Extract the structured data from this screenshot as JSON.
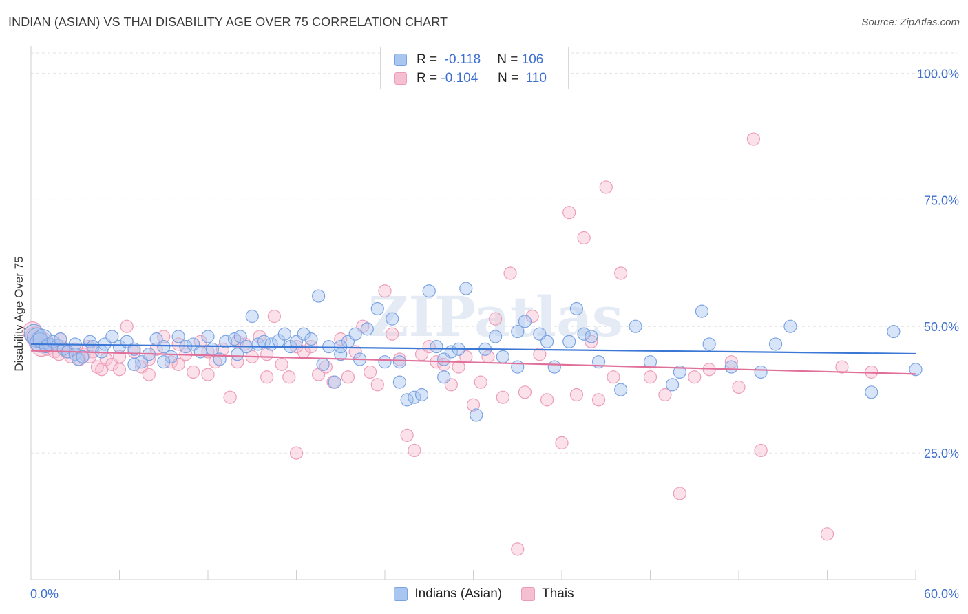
{
  "title": "INDIAN (ASIAN) VS THAI DISABILITY AGE OVER 75 CORRELATION CHART",
  "source": "Source: ZipAtlas.com",
  "legend": {
    "r_label": "R =",
    "n_label": "N =",
    "series": [
      {
        "name": "Indians (Asian)",
        "r": "-0.118",
        "n": "106"
      },
      {
        "name": "Thais",
        "r": "-0.104",
        "n": "110"
      }
    ]
  },
  "colors": {
    "blue_fill": "#a9c6f0",
    "blue_stroke": "#7ba3e3",
    "blue_line": "#3b78d6",
    "pink_fill": "#f6bfd1",
    "pink_stroke": "#ee9db9",
    "pink_line": "#e0709a",
    "tick_label": "#3d6fd1"
  },
  "chart_data": {
    "type": "scatter",
    "title": "INDIAN (ASIAN) VS THAI DISABILITY AGE OVER 75 CORRELATION CHART",
    "xlabel": "",
    "ylabel": "Disability Age Over 75",
    "xlim": [
      0,
      60
    ],
    "ylim": [
      0,
      104
    ],
    "x_tick_labels": [
      "0.0%",
      "60.0%"
    ],
    "y_ticks": [
      25,
      50,
      75,
      100
    ],
    "y_tick_labels": [
      "25.0%",
      "50.0%",
      "75.0%",
      "100.0%"
    ],
    "watermark": "ZIPatlas",
    "series": [
      {
        "name": "Indians (Asian)",
        "trend": {
          "x": [
            0,
            60
          ],
          "y": [
            46.5,
            44.6
          ]
        },
        "points": [
          [
            0.2,
            48.5
          ],
          [
            0.4,
            47.8
          ],
          [
            0.6,
            46.8
          ],
          [
            0.8,
            47.5
          ],
          [
            1.0,
            46.0
          ],
          [
            1.2,
            46.5
          ],
          [
            1.5,
            47.0
          ],
          [
            1.8,
            46.2
          ],
          [
            2.0,
            47.5
          ],
          [
            2.2,
            45.5
          ],
          [
            2.5,
            45.0
          ],
          [
            3.0,
            44.5
          ],
          [
            3.2,
            43.5
          ],
          [
            3.5,
            44.0
          ],
          [
            4.0,
            47.0
          ],
          [
            4.2,
            46.0
          ],
          [
            4.8,
            45.0
          ],
          [
            5.0,
            46.5
          ],
          [
            5.5,
            48.0
          ],
          [
            6.0,
            46.0
          ],
          [
            6.5,
            47.0
          ],
          [
            7.0,
            45.5
          ],
          [
            7.5,
            43.0
          ],
          [
            8.0,
            44.5
          ],
          [
            8.5,
            47.5
          ],
          [
            9.0,
            46.0
          ],
          [
            9.5,
            44.0
          ],
          [
            10.0,
            48.0
          ],
          [
            10.5,
            46.0
          ],
          [
            11.0,
            46.5
          ],
          [
            11.5,
            45.0
          ],
          [
            12.0,
            48.0
          ],
          [
            12.3,
            45.5
          ],
          [
            12.8,
            43.5
          ],
          [
            13.2,
            47.0
          ],
          [
            13.8,
            47.5
          ],
          [
            14.2,
            48.0
          ],
          [
            14.6,
            46.0
          ],
          [
            15.0,
            52.0
          ],
          [
            15.4,
            46.5
          ],
          [
            15.8,
            47.0
          ],
          [
            16.3,
            46.5
          ],
          [
            16.8,
            47.2
          ],
          [
            17.2,
            48.5
          ],
          [
            17.6,
            46.0
          ],
          [
            18.0,
            47.0
          ],
          [
            18.5,
            48.5
          ],
          [
            19.0,
            47.5
          ],
          [
            19.5,
            56.0
          ],
          [
            19.8,
            42.5
          ],
          [
            20.2,
            46.0
          ],
          [
            20.6,
            39.0
          ],
          [
            21.0,
            44.5
          ],
          [
            21.5,
            47.0
          ],
          [
            22.0,
            48.5
          ],
          [
            22.3,
            43.5
          ],
          [
            22.8,
            49.5
          ],
          [
            23.5,
            53.5
          ],
          [
            24.0,
            43.0
          ],
          [
            24.5,
            51.5
          ],
          [
            25.0,
            39.0
          ],
          [
            25.5,
            35.5
          ],
          [
            26.0,
            36.0
          ],
          [
            26.5,
            36.5
          ],
          [
            27.0,
            57.0
          ],
          [
            27.5,
            46.0
          ],
          [
            28.0,
            40.0
          ],
          [
            28.5,
            45.0
          ],
          [
            29.0,
            45.5
          ],
          [
            29.5,
            57.5
          ],
          [
            30.2,
            32.5
          ],
          [
            30.8,
            45.5
          ],
          [
            31.5,
            48.0
          ],
          [
            32.0,
            44.0
          ],
          [
            33.0,
            49.0
          ],
          [
            33.5,
            51.0
          ],
          [
            34.5,
            48.5
          ],
          [
            35.0,
            47.0
          ],
          [
            35.5,
            42.0
          ],
          [
            36.5,
            47.0
          ],
          [
            37.0,
            53.5
          ],
          [
            37.5,
            48.5
          ],
          [
            38.0,
            48.0
          ],
          [
            38.5,
            43.0
          ],
          [
            40.0,
            37.5
          ],
          [
            41.0,
            50.0
          ],
          [
            42.0,
            43.0
          ],
          [
            43.5,
            38.5
          ],
          [
            44.0,
            41.0
          ],
          [
            45.5,
            53.0
          ],
          [
            46.0,
            46.5
          ],
          [
            47.5,
            42.0
          ],
          [
            49.5,
            41.0
          ],
          [
            50.5,
            46.5
          ],
          [
            51.5,
            50.0
          ],
          [
            57.0,
            37.0
          ],
          [
            58.5,
            49.0
          ],
          [
            60.0,
            41.5
          ],
          [
            3.0,
            46.5
          ],
          [
            7.0,
            42.5
          ],
          [
            9.0,
            43.0
          ],
          [
            14.0,
            44.5
          ],
          [
            21.0,
            46.0
          ],
          [
            25.0,
            43.0
          ],
          [
            28.0,
            43.5
          ],
          [
            33.0,
            42.0
          ]
        ]
      },
      {
        "name": "Thais",
        "trend": {
          "x": [
            0,
            60
          ],
          "y": [
            45.2,
            40.6
          ]
        },
        "points": [
          [
            0.1,
            49.0
          ],
          [
            0.3,
            48.0
          ],
          [
            0.5,
            47.0
          ],
          [
            0.7,
            46.0
          ],
          [
            0.9,
            47.5
          ],
          [
            1.1,
            45.5
          ],
          [
            1.3,
            46.5
          ],
          [
            1.6,
            45.0
          ],
          [
            1.9,
            44.5
          ],
          [
            2.1,
            46.0
          ],
          [
            2.4,
            45.0
          ],
          [
            2.7,
            44.0
          ],
          [
            3.0,
            45.5
          ],
          [
            3.3,
            43.5
          ],
          [
            3.6,
            44.5
          ],
          [
            3.9,
            46.0
          ],
          [
            4.2,
            45.0
          ],
          [
            4.5,
            42.0
          ],
          [
            4.8,
            41.5
          ],
          [
            5.1,
            43.5
          ],
          [
            5.5,
            42.5
          ],
          [
            6.0,
            44.0
          ],
          [
            6.5,
            50.0
          ],
          [
            7.0,
            45.0
          ],
          [
            7.5,
            42.0
          ],
          [
            8.0,
            43.5
          ],
          [
            8.5,
            45.5
          ],
          [
            9.0,
            48.0
          ],
          [
            9.5,
            43.0
          ],
          [
            10.0,
            42.5
          ],
          [
            10.5,
            44.5
          ],
          [
            11.0,
            41.0
          ],
          [
            11.5,
            47.0
          ],
          [
            12.0,
            45.0
          ],
          [
            12.5,
            43.0
          ],
          [
            13.0,
            45.5
          ],
          [
            13.5,
            36.0
          ],
          [
            14.0,
            43.0
          ],
          [
            14.5,
            46.5
          ],
          [
            15.0,
            44.0
          ],
          [
            15.5,
            48.0
          ],
          [
            16.0,
            44.5
          ],
          [
            16.5,
            52.0
          ],
          [
            17.0,
            42.5
          ],
          [
            17.5,
            40.0
          ],
          [
            18.0,
            25.0
          ],
          [
            18.5,
            45.0
          ],
          [
            19.0,
            46.0
          ],
          [
            19.5,
            40.5
          ],
          [
            20.0,
            42.0
          ],
          [
            20.5,
            39.0
          ],
          [
            21.0,
            47.5
          ],
          [
            21.5,
            40.0
          ],
          [
            22.0,
            45.0
          ],
          [
            22.5,
            50.0
          ],
          [
            23.0,
            41.0
          ],
          [
            23.5,
            38.5
          ],
          [
            24.0,
            57.0
          ],
          [
            24.5,
            48.5
          ],
          [
            25.0,
            43.5
          ],
          [
            25.5,
            28.5
          ],
          [
            26.0,
            25.5
          ],
          [
            26.5,
            44.5
          ],
          [
            27.0,
            46.0
          ],
          [
            27.5,
            43.0
          ],
          [
            28.0,
            42.5
          ],
          [
            28.5,
            38.5
          ],
          [
            29.0,
            42.0
          ],
          [
            29.5,
            44.0
          ],
          [
            30.0,
            34.5
          ],
          [
            30.5,
            39.0
          ],
          [
            31.0,
            44.0
          ],
          [
            31.5,
            51.5
          ],
          [
            32.0,
            36.0
          ],
          [
            32.5,
            60.5
          ],
          [
            33.0,
            6.0
          ],
          [
            33.5,
            37.0
          ],
          [
            34.0,
            52.0
          ],
          [
            34.5,
            44.5
          ],
          [
            35.0,
            35.5
          ],
          [
            36.0,
            27.0
          ],
          [
            36.5,
            72.5
          ],
          [
            37.0,
            36.5
          ],
          [
            37.5,
            67.5
          ],
          [
            38.0,
            47.0
          ],
          [
            38.5,
            35.5
          ],
          [
            39.0,
            77.5
          ],
          [
            39.5,
            40.0
          ],
          [
            40.0,
            60.5
          ],
          [
            42.0,
            40.0
          ],
          [
            43.0,
            36.5
          ],
          [
            44.0,
            17.0
          ],
          [
            45.0,
            40.0
          ],
          [
            46.0,
            41.5
          ],
          [
            47.5,
            43.0
          ],
          [
            48.0,
            38.0
          ],
          [
            49.0,
            87.0
          ],
          [
            49.5,
            25.5
          ],
          [
            54.0,
            9.0
          ],
          [
            55.0,
            42.0
          ],
          [
            57.0,
            41.0
          ],
          [
            2.0,
            47.5
          ],
          [
            4.0,
            44.0
          ],
          [
            6.0,
            41.5
          ],
          [
            8.0,
            40.5
          ],
          [
            10.0,
            46.5
          ],
          [
            12.0,
            40.5
          ],
          [
            14.0,
            47.0
          ],
          [
            16.0,
            40.0
          ],
          [
            18.0,
            46.0
          ]
        ]
      }
    ]
  }
}
